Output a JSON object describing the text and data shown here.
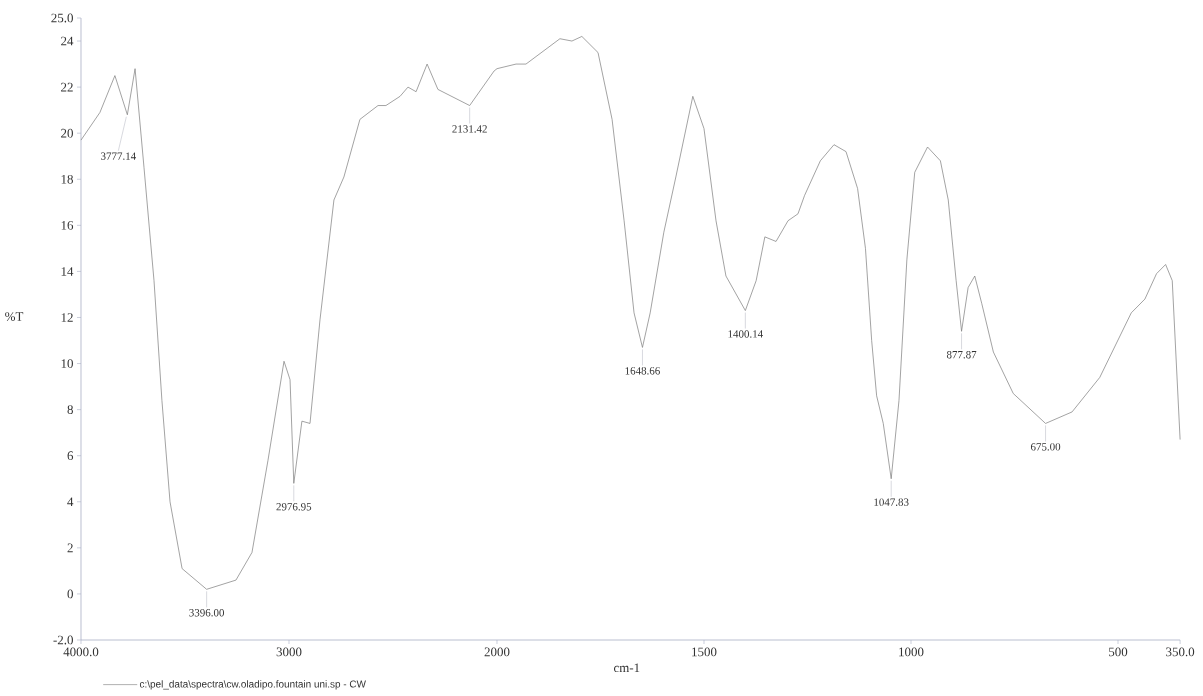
{
  "chart_data": [
    {
      "type": "line",
      "ylabel": "%T",
      "legend": "bottom left",
      "x": [
        4000,
        3909,
        3837,
        3777.14,
        3740,
        3697,
        3649,
        3611,
        3572,
        3514,
        3396,
        3255,
        3178,
        3101,
        3024,
        2995,
        2976.95,
        2938,
        2899,
        2851,
        2784,
        2736,
        2659,
        2572,
        2534,
        2466,
        2428,
        2389,
        2336,
        2284,
        2131.42,
        2014,
        2000
      ],
      "series": [
        {
          "name": "c:\\pel_data\\spectra\\cw.oladipo.fountain uni.sp - CW",
          "color": "#7a7a7a",
          "values": [
            19.7,
            20.9,
            22.5,
            20.8,
            22.8,
            18.5,
            13.6,
            8.4,
            4.0,
            1.1,
            0.2,
            0.6,
            1.8,
            5.8,
            10.1,
            9.3,
            4.8,
            7.5,
            7.4,
            11.9,
            17.1,
            18.1,
            20.6,
            21.2,
            21.2,
            21.6,
            22.0,
            21.8,
            23.0,
            21.9,
            21.2,
            22.7,
            22.8
          ]
        }
      ],
      "xlim": [
        4000,
        2000
      ],
      "ylim": [
        -2,
        25
      ],
      "xticks": [
        {
          "value": 4000,
          "label": "4000.0"
        },
        3000
      ],
      "yticks": [
        {
          "value": -2,
          "label": "-2.0"
        },
        0,
        2,
        4,
        6,
        8,
        10,
        12,
        14,
        16,
        18,
        20,
        22,
        24,
        {
          "value": 25,
          "label": "25.0"
        }
      ],
      "annotations": [
        {
          "text": "3777.14",
          "x": 3777.14,
          "y": 20.8
        },
        {
          "text": "3396.00",
          "x": 3396,
          "y": 0.2
        },
        {
          "text": "2976.95",
          "x": 2976.95,
          "y": 4.8
        },
        {
          "text": "2131.42",
          "x": 2131.42,
          "y": 21.2
        }
      ]
    },
    {
      "type": "line",
      "xlabel": "cm-1",
      "tick_labels": "x",
      "x": [
        2000,
        1954,
        1930,
        1848,
        1819,
        1795,
        1756,
        1722,
        1693,
        1669,
        1648.66,
        1630,
        1597,
        1568,
        1527,
        1500,
        1471,
        1447,
        1400.14,
        1374,
        1353,
        1326,
        1297,
        1273,
        1257,
        1219,
        1186,
        1157,
        1129,
        1110,
        1095,
        1083,
        1067,
        1047.83,
        1029,
        1010,
        991,
        960,
        929,
        910,
        891,
        877.87,
        862,
        846,
        829,
        801,
        753,
        675,
        611,
        544,
        468,
        435,
        407,
        385,
        369,
        350
      ],
      "series": [
        {
          "color": "#7a7a7a",
          "values": [
            22.8,
            23.0,
            23.0,
            24.1,
            24.0,
            24.2,
            23.5,
            20.6,
            16.2,
            12.2,
            10.7,
            12.2,
            15.7,
            18.1,
            21.6,
            20.2,
            16.2,
            13.8,
            12.3,
            13.6,
            15.5,
            15.3,
            16.2,
            16.5,
            17.3,
            18.8,
            19.5,
            19.2,
            17.6,
            15.0,
            11.0,
            8.6,
            7.4,
            5.0,
            8.4,
            14.5,
            18.3,
            19.4,
            18.8,
            17.1,
            13.6,
            11.4,
            13.3,
            13.8,
            12.6,
            10.5,
            8.7,
            7.4,
            7.9,
            9.4,
            12.2,
            12.8,
            13.9,
            14.3,
            13.6,
            6.7
          ]
        }
      ],
      "xlim": [
        2000,
        350
      ],
      "ylim": [
        -2,
        25
      ],
      "xticks": [
        2000,
        1500,
        1000,
        500,
        {
          "value": 350,
          "label": "350.0"
        }
      ],
      "annotations": [
        {
          "text": "1648.66",
          "x": 1648.66,
          "y": 10.7
        },
        {
          "text": "1400.14",
          "x": 1400.14,
          "y": 12.3
        },
        {
          "text": "1047.83",
          "x": 1047.83,
          "y": 5.0
        },
        {
          "text": "877.87",
          "x": 877.87,
          "y": 11.4
        },
        {
          "text": "675.00",
          "x": 675,
          "y": 7.4
        }
      ]
    }
  ]
}
